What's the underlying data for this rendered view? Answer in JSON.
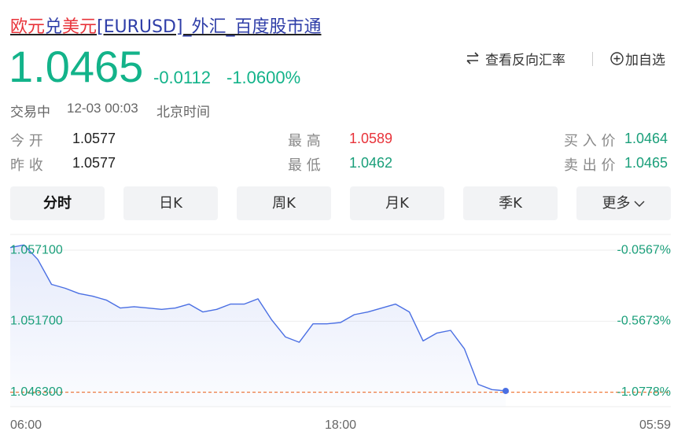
{
  "header": {
    "title_parts": [
      {
        "text": "欧元",
        "color": "#e8333a"
      },
      {
        "text": "兑",
        "color": "#2f3ea8"
      },
      {
        "text": "美元",
        "color": "#e8333a"
      },
      {
        "text": "[EURUSD]_外汇_百度股市通",
        "color": "#2f3ea8"
      }
    ],
    "actions": [
      "查看反向汇率",
      "加自选"
    ]
  },
  "quote": {
    "price": 1.0465,
    "change": -0.0112,
    "change_pct": "-1.0600%",
    "status": "交易中",
    "time": "12-03 00:03",
    "timezone": "北京时间",
    "color": "#13b38a"
  },
  "stats": [
    {
      "label": "今 开",
      "value": 1.0577,
      "color": "#222222"
    },
    {
      "label": "昨 收",
      "value": 1.0577,
      "color": "#222222"
    },
    {
      "label": "最 高",
      "value": 1.0589,
      "color": "#e8333a"
    },
    {
      "label": "最 低",
      "value": 1.0462,
      "color": "#1a9f7a"
    },
    {
      "label": "买 入 价",
      "value": 1.0464,
      "color": "#1a9f7a"
    },
    {
      "label": "卖 出 价",
      "value": 1.0465,
      "color": "#1a9f7a"
    }
  ],
  "tabs": [
    "分时",
    "日K",
    "周K",
    "月K",
    "季K",
    "更多"
  ],
  "chart_data": {
    "type": "line",
    "categories": [
      "06:00",
      null,
      null,
      null,
      null,
      null,
      null,
      null,
      null,
      null,
      null,
      null,
      null,
      null,
      null,
      null,
      null,
      null,
      null,
      null,
      null,
      null,
      null,
      null,
      "18:00",
      null,
      null,
      null,
      null,
      null,
      null,
      null,
      null,
      null,
      null,
      null,
      null,
      null,
      null,
      null,
      null,
      null,
      null,
      null,
      null,
      null,
      null,
      null,
      "05:59"
    ],
    "series": [
      {
        "color": "#4a6fe3",
        "values": [
          1.0573,
          1.0575,
          1.0564,
          1.0545,
          1.0542,
          1.0538,
          1.0536,
          1.0533,
          1.0527,
          1.0528,
          1.0527,
          1.0526,
          1.0527,
          1.053,
          1.0524,
          1.0526,
          1.053,
          1.053,
          1.0534,
          1.0518,
          1.0505,
          1.0501,
          1.0515,
          1.0515,
          1.0516,
          1.0522,
          1.0524,
          1.0527,
          1.053,
          1.0524,
          1.0502,
          1.0508,
          1.051,
          1.0496,
          1.0469,
          1.0465,
          1.0464,
          null,
          null,
          null,
          null,
          null,
          null,
          null,
          null,
          null,
          null,
          null,
          null
        ]
      }
    ],
    "ylim": [
      1.0452,
      1.0583
    ],
    "yticks": [
      {
        "value": 1.0571,
        "label": "1.057100"
      },
      {
        "value": 1.0517,
        "label": "1.051700"
      },
      {
        "value": 1.0463,
        "label": "1.046300"
      }
    ],
    "y2lim": [
      -1.1818,
      0.0567
    ],
    "y2ticks": [
      {
        "value": -0.0567,
        "label": "-0.0567%"
      },
      {
        "value": -0.5673,
        "label": "-0.5673%"
      },
      {
        "value": -1.0778,
        "label": "-1.0778%"
      }
    ],
    "grid": true
  }
}
